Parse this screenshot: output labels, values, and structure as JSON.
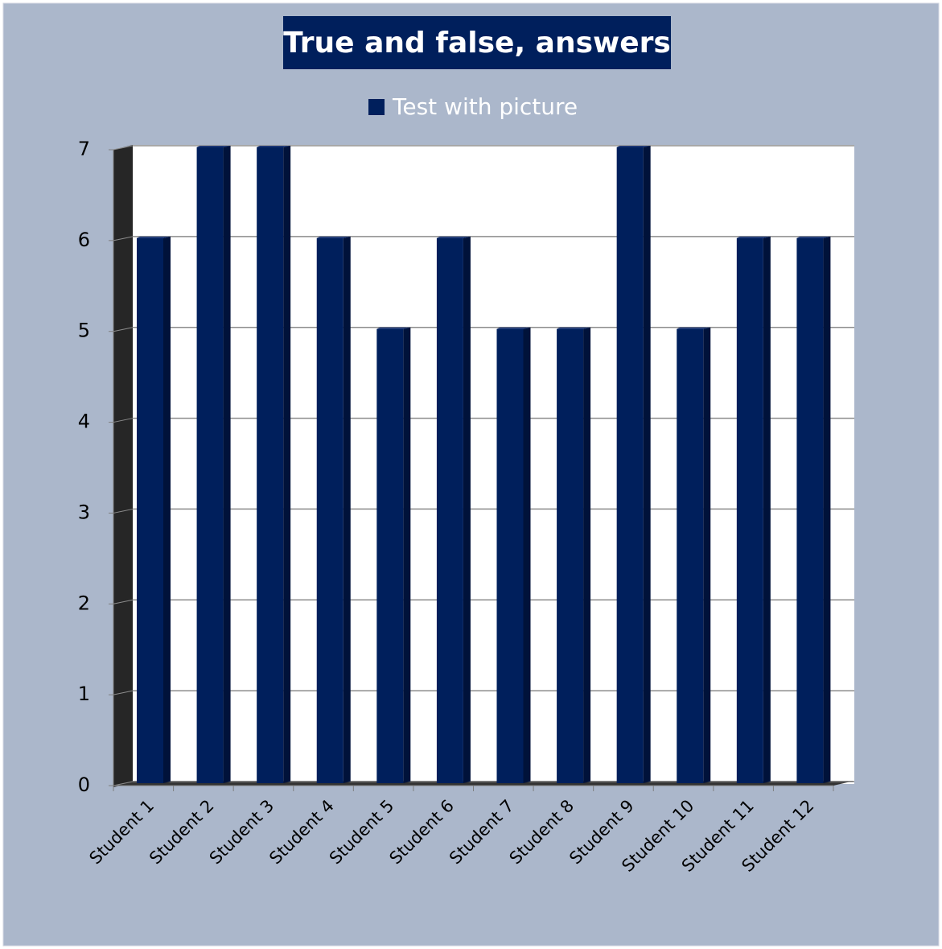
{
  "chart_data": {
    "type": "bar",
    "title": "True and false, answers",
    "categories": [
      "Student 1",
      "Student 2",
      "Student 3",
      "Student 4",
      "Student 5",
      "Student 6",
      "Student 7",
      "Student 8",
      "Student 9",
      "Student 10",
      "Student 11",
      "Student 12"
    ],
    "series": [
      {
        "name": "Test with picture",
        "color": "#001f5c",
        "values": [
          6,
          7,
          7,
          6,
          5,
          6,
          5,
          5,
          7,
          5,
          6,
          6
        ]
      }
    ],
    "ylim": [
      0,
      7
    ],
    "yticks": [
      0,
      1,
      2,
      3,
      4,
      5,
      6,
      7
    ],
    "grid": true,
    "legend": "top"
  }
}
